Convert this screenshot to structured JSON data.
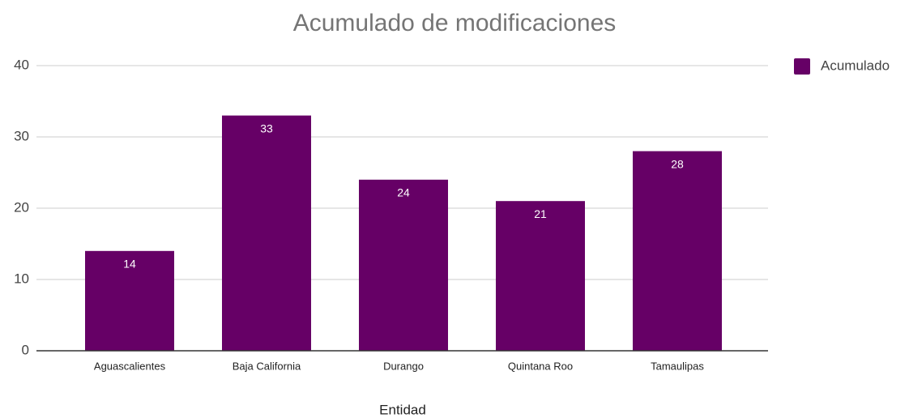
{
  "chart_data": {
    "type": "bar",
    "title": "Acumulado de modificaciones",
    "x_label": "Entidad",
    "categories": [
      "Aguascalientes",
      "Baja California",
      "Durango",
      "Quintana Roo",
      "Tamaulipas"
    ],
    "series": [
      {
        "name": "Acumulado",
        "color": "#660066",
        "values": [
          14,
          33,
          24,
          21,
          28
        ]
      }
    ],
    "ylim": [
      0,
      40
    ],
    "yticks": [
      0,
      10,
      20,
      30,
      40
    ],
    "grid": true,
    "legend": "right",
    "data_labels": true
  }
}
